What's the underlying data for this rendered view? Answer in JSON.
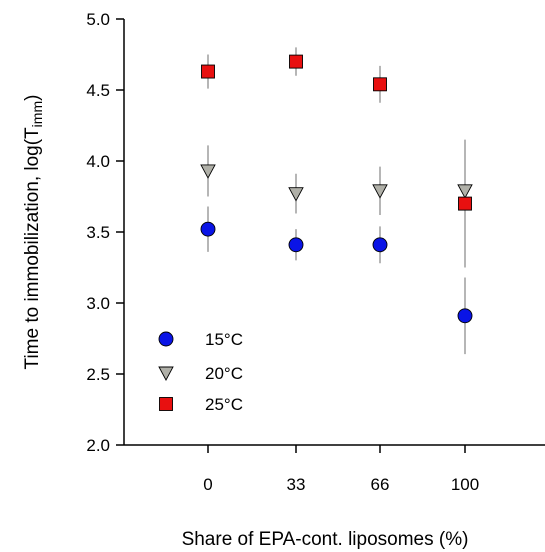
{
  "chart_data": {
    "type": "scatter",
    "xlabel": "Share of EPA-cont. liposomes (%)",
    "ylabel": "Time to immobilization, log(T",
    "ylabel_sub": "imm",
    "ylabel_close": ")",
    "ylim": [
      2.0,
      5.0
    ],
    "yticks": [
      "2.0",
      "2.5",
      "3.0",
      "3.5",
      "4.0",
      "4.5",
      "5.0"
    ],
    "categories": [
      "0",
      "33",
      "66",
      "100"
    ],
    "grid": false,
    "legend_position": "bottom-left",
    "series": [
      {
        "name": "15°C",
        "marker": "circle",
        "color": "#0a14e6",
        "values": [
          3.52,
          3.41,
          3.41,
          2.91
        ],
        "errors": [
          0.16,
          0.11,
          0.13,
          0.27
        ]
      },
      {
        "name": "20°C",
        "marker": "triangle-down",
        "color": "#b0b0a8",
        "values": [
          3.93,
          3.77,
          3.79,
          3.79
        ],
        "errors": [
          0.18,
          0.14,
          0.17,
          0.36
        ]
      },
      {
        "name": "25°C",
        "marker": "square",
        "color": "#e81010",
        "values": [
          4.63,
          4.7,
          4.54,
          3.7
        ],
        "errors": [
          0.12,
          0.1,
          0.13,
          0.45
        ]
      }
    ]
  }
}
